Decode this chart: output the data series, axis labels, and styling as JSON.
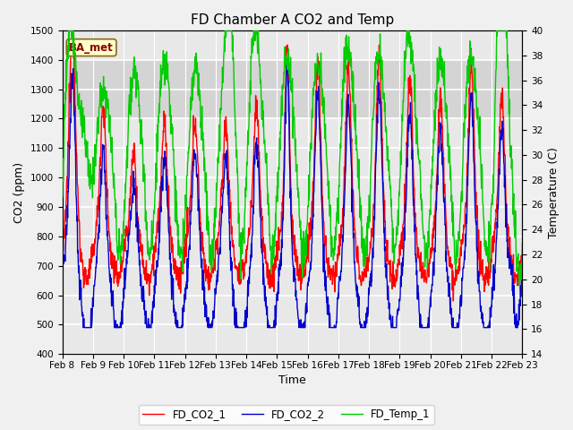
{
  "title": "FD Chamber A CO2 and Temp",
  "xlabel": "Time",
  "ylabel_left": "CO2 (ppm)",
  "ylabel_right": "Temperature (C)",
  "ylim_left": [
    400,
    1500
  ],
  "ylim_right": [
    14,
    40
  ],
  "xlim": [
    0,
    360
  ],
  "xtick_labels": [
    "Feb 8",
    "Feb 9",
    "Feb 10",
    "Feb 11",
    "Feb 12",
    "Feb 13",
    "Feb 14",
    "Feb 15",
    "Feb 16",
    "Feb 17",
    "Feb 18",
    "Feb 19",
    "Feb 20",
    "Feb 21",
    "Feb 22",
    "Feb 23"
  ],
  "xtick_positions": [
    0,
    24,
    48,
    72,
    96,
    120,
    144,
    168,
    192,
    216,
    240,
    264,
    288,
    312,
    336,
    360
  ],
  "shaded_region": [
    1200,
    1400
  ],
  "legend_labels": [
    "FD_CO2_1",
    "FD_CO2_2",
    "FD_Temp_1"
  ],
  "line_colors": [
    "#ff0000",
    "#0000cc",
    "#00cc00"
  ],
  "ba_met_label": "BA_met",
  "fig_facecolor": "#f0f0f0",
  "plot_facecolor": "#e8e8e8",
  "title_fontsize": 11,
  "axis_fontsize": 9,
  "tick_fontsize": 7.5,
  "line_width": 1.0
}
